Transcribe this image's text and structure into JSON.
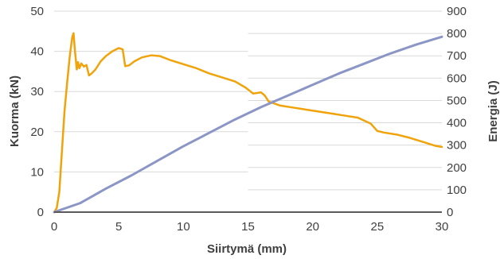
{
  "chart_data": {
    "type": "line",
    "title": "",
    "xlabel": "Siirtymä (mm)",
    "ylabel": "Kuorma (kN)",
    "y2label": "Energia (J)",
    "xlim": [
      0,
      30
    ],
    "ylim": [
      0,
      50
    ],
    "y2lim": [
      0,
      900
    ],
    "x_ticks": [
      "0",
      "5",
      "10",
      "15",
      "20",
      "25",
      "30"
    ],
    "y_ticks": [
      "0",
      "10",
      "20",
      "30",
      "40",
      "50"
    ],
    "y2_ticks": [
      "0",
      "100",
      "200",
      "300",
      "400",
      "500",
      "600",
      "700",
      "800",
      "900"
    ],
    "grid": true,
    "legend": "none",
    "series": [
      {
        "axis": "left",
        "color": "#F0A30A",
        "x": [
          0,
          0.2,
          0.4,
          0.6,
          0.8,
          1.0,
          1.2,
          1.4,
          1.5,
          1.6,
          1.75,
          1.85,
          1.95,
          2.1,
          2.3,
          2.5,
          2.7,
          2.9,
          3.2,
          3.6,
          4.0,
          4.5,
          5.0,
          5.3,
          5.5,
          5.8,
          6.2,
          6.8,
          7.5,
          8.2,
          9.0,
          10.0,
          11.0,
          12.0,
          13.0,
          14.0,
          14.8,
          15.4,
          16.0,
          16.3,
          16.6,
          17.5,
          18.5,
          19.5,
          20.5,
          21.5,
          22.5,
          23.5,
          24.5,
          25.0,
          25.5,
          26.5,
          27.5,
          28.5,
          29.5,
          30.0
        ],
        "y": [
          0,
          1.0,
          5.0,
          15.0,
          25.0,
          32.0,
          38.5,
          43.5,
          44.5,
          40.5,
          35.5,
          37.3,
          35.8,
          37.0,
          36.2,
          36.6,
          34.0,
          34.5,
          35.5,
          37.5,
          38.8,
          40.0,
          40.8,
          40.5,
          36.3,
          36.5,
          37.5,
          38.5,
          39.0,
          38.8,
          37.8,
          36.8,
          35.8,
          34.5,
          33.5,
          32.5,
          31.0,
          29.5,
          29.8,
          29.0,
          27.5,
          26.5,
          26.0,
          25.5,
          25.0,
          24.5,
          24.0,
          23.5,
          22.0,
          20.2,
          19.8,
          19.3,
          18.5,
          17.5,
          16.5,
          16.2
        ]
      },
      {
        "axis": "right",
        "color": "#8B96C6",
        "x": [
          0,
          2,
          4,
          6,
          8,
          10,
          12,
          14,
          16,
          18,
          20,
          22,
          24,
          26,
          28,
          30
        ],
        "y": [
          0,
          40,
          105,
          165,
          230,
          295,
          355,
          415,
          470,
          520,
          570,
          620,
          665,
          710,
          750,
          785
        ]
      }
    ]
  }
}
